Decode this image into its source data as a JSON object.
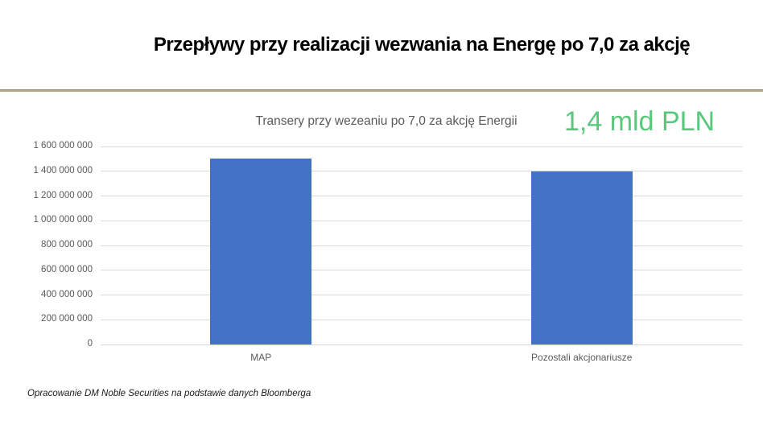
{
  "page": {
    "title": "Przepływy przy realizacji wezwania na Energę po 7,0 za akcję",
    "footer": "Opracowanie DM Noble Securities  na podstawie danych Bloomberga",
    "divider_color": "#b0a88c",
    "background_color": "#ffffff"
  },
  "annotation": {
    "text": "1,4 mld PLN",
    "color": "#58c87c"
  },
  "chart_data": {
    "type": "bar",
    "title": "Transery przy wezeaniu po 7,0 za akcję Energii",
    "categories": [
      "MAP",
      "Pozostali akcjonariusze"
    ],
    "values": [
      1500000000,
      1400000000
    ],
    "xlabel": "",
    "ylabel": "",
    "ylim": [
      0,
      1600000000
    ],
    "yticks": [
      0,
      200000000,
      400000000,
      600000000,
      800000000,
      1000000000,
      1200000000,
      1400000000,
      1600000000
    ],
    "ytick_labels": [
      "0",
      "200 000 000",
      "400 000 000",
      "600 000 000",
      "800 000 000",
      "1 000 000 000",
      "1 200 000 000",
      "1 400 000 000",
      "1 600 000 000"
    ],
    "grid": true,
    "legend": false,
    "bar_color": "#4472c4",
    "gridline_color": "#d9d9d9",
    "axis_text_color": "#595959",
    "title_color": "#595959"
  }
}
